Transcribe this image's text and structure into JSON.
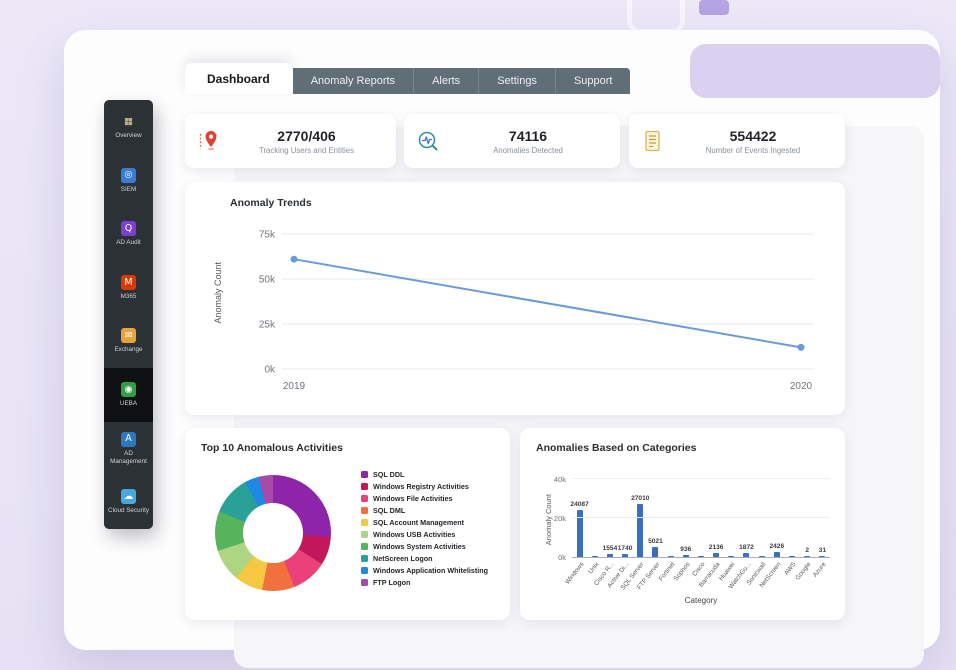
{
  "theme": {
    "page_bg": "#eae6f7",
    "window_bg": "#fdfdfe",
    "tab_inactive_bg": "#5f6e77",
    "sidebar_bg": "#2c3136",
    "sidebar_active_bg": "#0f1113",
    "card_bg": "#ffffff"
  },
  "tabs": [
    {
      "label": "Dashboard",
      "active": true
    },
    {
      "label": "Anomaly Reports",
      "active": false
    },
    {
      "label": "Alerts",
      "active": false
    },
    {
      "label": "Settings",
      "active": false
    },
    {
      "label": "Support",
      "active": false
    }
  ],
  "sidebar": {
    "items": [
      {
        "label": "Overview",
        "icon": "overview-grid-icon",
        "glyph": "▦",
        "icon_bg": "transparent",
        "icon_fg": "#e5d48e",
        "active": false
      },
      {
        "label": "SIEM",
        "icon": "siem-icon",
        "glyph": "◎",
        "icon_bg": "#3a7bd5",
        "icon_fg": "#ffffff",
        "active": false
      },
      {
        "label": "AD Audit",
        "icon": "ad-audit-icon",
        "glyph": "Q",
        "icon_bg": "#7a3fd1",
        "icon_fg": "#ffffff",
        "active": false
      },
      {
        "label": "M365",
        "icon": "m365-icon",
        "glyph": "M",
        "icon_bg": "#d83b01",
        "icon_fg": "#ffffff",
        "active": false
      },
      {
        "label": "Exchange",
        "icon": "exchange-icon",
        "glyph": "✉",
        "icon_bg": "#e8a33d",
        "icon_fg": "#ffffff",
        "active": false
      },
      {
        "label": "UEBA",
        "icon": "ueba-icon",
        "glyph": "◉",
        "icon_bg": "#2f9e44",
        "icon_fg": "#ffffff",
        "active": true
      },
      {
        "label": "AD Management",
        "icon": "ad-management-icon",
        "glyph": "A",
        "icon_bg": "#2b79c2",
        "icon_fg": "#ffffff",
        "active": false
      },
      {
        "label": "Cloud Security",
        "icon": "cloud-security-icon",
        "glyph": "☁",
        "icon_bg": "#49a8dd",
        "icon_fg": "#ffffff",
        "active": false
      }
    ]
  },
  "stats": [
    {
      "icon": "location-pin-icon",
      "value": "2770/406",
      "caption": "Tracking Users and Entities"
    },
    {
      "icon": "anomaly-search-icon",
      "value": "74116",
      "caption": "Anomalies Detected"
    },
    {
      "icon": "events-ingested-icon",
      "value": "554422",
      "caption": "Number of Events Ingested"
    }
  ],
  "chart_data": [
    {
      "id": "anomaly-trends",
      "type": "line",
      "title": "Anomaly Trends",
      "ylabel": "Anomaly Count",
      "x": [
        "2019",
        "2020"
      ],
      "values": [
        61000,
        12000
      ],
      "ylim": [
        0,
        75000
      ],
      "yticks": [
        {
          "label": "0k",
          "value": 0
        },
        {
          "label": "25k",
          "value": 25000
        },
        {
          "label": "50k",
          "value": 50000
        },
        {
          "label": "75k",
          "value": 75000
        }
      ],
      "grid": true,
      "line_color": "#6a9bd8"
    },
    {
      "id": "top-10-anomalous-activities",
      "type": "pie",
      "title": "Top 10 Anomalous Activities",
      "legend_position": "right",
      "series": [
        {
          "name": "SQL DDL",
          "color": "#8e24aa",
          "pct": 26
        },
        {
          "name": "Windows Registry Activities",
          "color": "#c2185b",
          "pct": 8
        },
        {
          "name": "Windows File Activities",
          "color": "#ec407a",
          "pct": 10
        },
        {
          "name": "SQL DML",
          "color": "#f2703e",
          "pct": 9
        },
        {
          "name": "SQL Account Management",
          "color": "#f5c842",
          "pct": 8
        },
        {
          "name": "Windows USB Activities",
          "color": "#aed581",
          "pct": 9
        },
        {
          "name": "Windows System Activities",
          "color": "#57b35c",
          "pct": 11
        },
        {
          "name": "NetScreen Logon",
          "color": "#2aa198",
          "pct": 11
        },
        {
          "name": "Windows Application Whitelisting",
          "color": "#1e88e5",
          "pct": 4
        },
        {
          "name": "FTP Logon",
          "color": "#a64ca6",
          "pct": 4
        }
      ]
    },
    {
      "id": "anomalies-based-on-categories",
      "type": "bar",
      "title": "Anomalies Based on Categories",
      "xlabel": "Category",
      "ylabel": "Anomaly Count",
      "categories": [
        "Windows",
        "Unix",
        "Cisco R...",
        "Active Di...",
        "SQL Server",
        "FTP Server",
        "Fortinet",
        "Sophos",
        "Cisco",
        "Barracuda",
        "Huawei",
        "WatchGu...",
        "Sonicwall",
        "NetScreen",
        "AWS",
        "Google",
        "Azure"
      ],
      "values": [
        24087,
        0,
        1554,
        1740,
        27010,
        5021,
        0,
        936,
        0,
        2136,
        0,
        1872,
        0,
        2426,
        0,
        2,
        31
      ],
      "ylim": [
        0,
        40000
      ],
      "yticks": [
        {
          "label": "0k",
          "value": 0
        },
        {
          "label": "20k",
          "value": 20000
        },
        {
          "label": "40k",
          "value": 40000
        }
      ],
      "bar_color": "#3a6fc0"
    }
  ]
}
